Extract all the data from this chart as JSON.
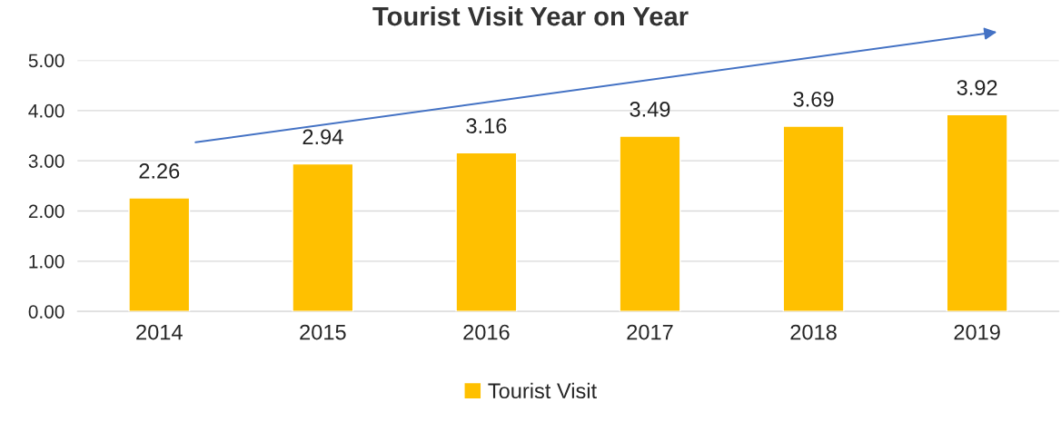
{
  "chart_data": {
    "type": "bar",
    "title": "Tourist Visit Year on Year",
    "categories": [
      "2014",
      "2015",
      "2016",
      "2017",
      "2018",
      "2019"
    ],
    "series": [
      {
        "name": "Tourist Visit",
        "color": "#ffc000",
        "values": [
          2.26,
          2.94,
          3.16,
          3.49,
          3.69,
          3.92
        ]
      }
    ],
    "ylim": [
      0,
      5
    ],
    "yticks": [
      {
        "value": 0,
        "label": "0.00"
      },
      {
        "value": 1,
        "label": "1.00"
      },
      {
        "value": 2,
        "label": "2.00"
      },
      {
        "value": 3,
        "label": "3.00"
      },
      {
        "value": 4,
        "label": "4.00"
      },
      {
        "value": 5,
        "label": "5.00"
      }
    ],
    "grid": "y",
    "legend": "bottom",
    "data_labels": true
  }
}
